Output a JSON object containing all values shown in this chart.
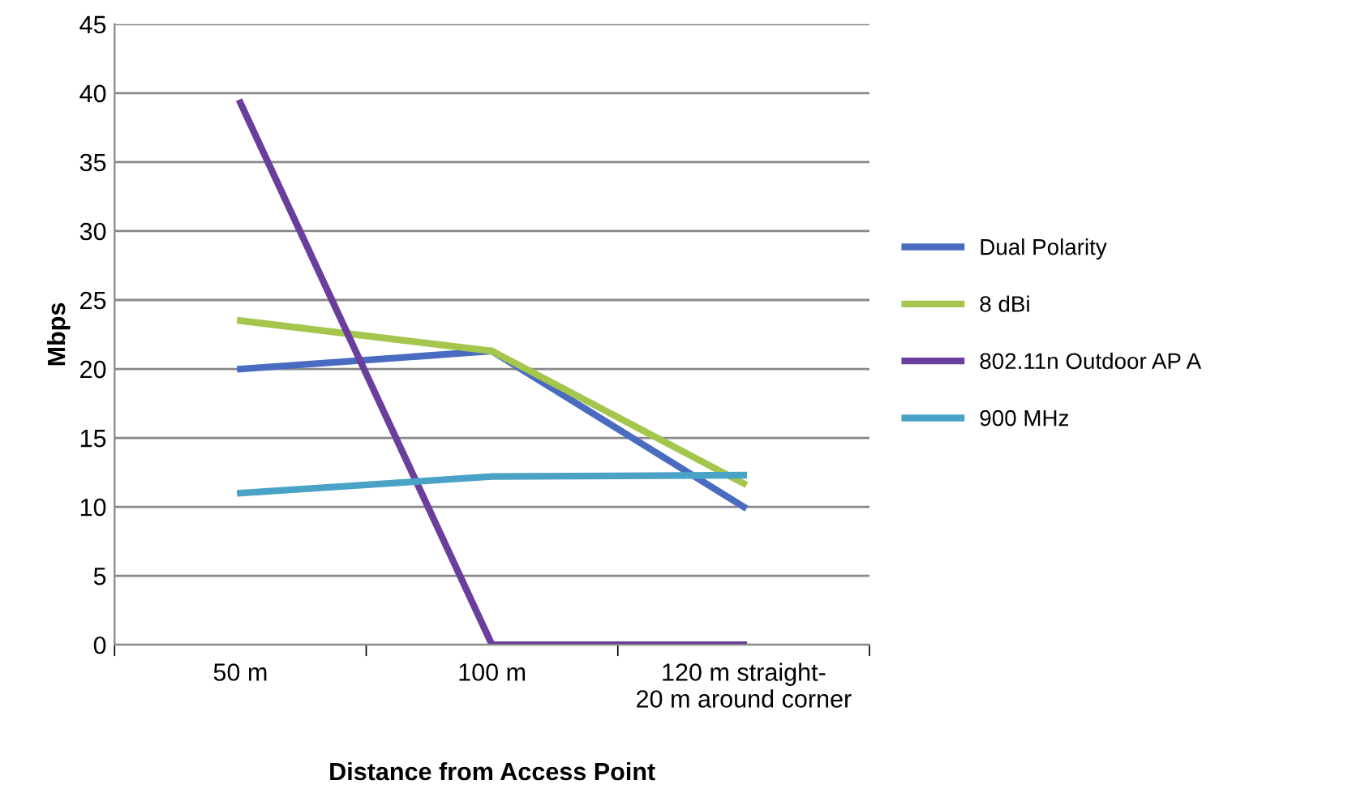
{
  "chart_data": {
    "type": "line",
    "xlabel": "Distance from Access Point",
    "ylabel": "Mbps",
    "categories": [
      "50 m",
      "100 m",
      "120 m straight-\n20 m around corner"
    ],
    "series": [
      {
        "name": "Dual Polarity",
        "color": "#4a6cc0",
        "values": [
          20,
          21.3,
          10
        ]
      },
      {
        "name": "8 dBi",
        "color": "#a5c64c",
        "values": [
          23.5,
          21.3,
          11.7
        ]
      },
      {
        "name": "802.11n Outdoor AP A",
        "color": "#6a3f9b",
        "values": [
          39.3,
          0,
          0
        ]
      },
      {
        "name": "900 MHz",
        "color": "#4aa3c6",
        "values": [
          11,
          12.2,
          12.3
        ]
      }
    ],
    "ylim": [
      0,
      45
    ],
    "yticks": [
      0,
      5,
      10,
      15,
      20,
      25,
      30,
      35,
      40,
      45
    ],
    "grid": "y",
    "legend": "right",
    "marker": "none",
    "line_style": "solid"
  }
}
